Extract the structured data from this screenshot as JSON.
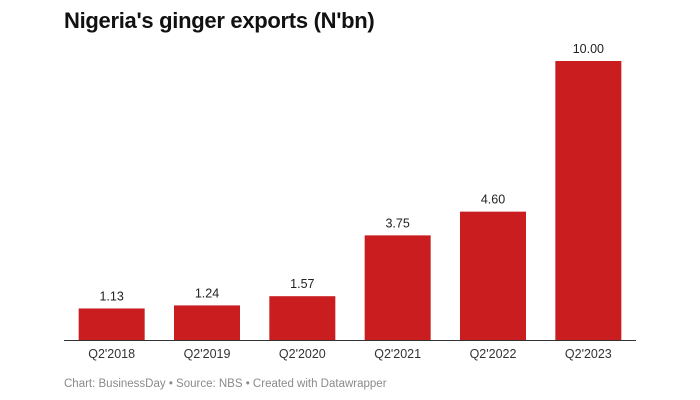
{
  "chart_data": {
    "type": "bar",
    "title": "Nigeria's ginger exports (N'bn)",
    "categories": [
      "Q2'2018",
      "Q2'2019",
      "Q2'2020",
      "Q2'2021",
      "Q2'2022",
      "Q2'2023"
    ],
    "values": [
      1.13,
      1.24,
      1.57,
      3.75,
      4.6,
      10.0
    ],
    "data_labels": [
      "1.13",
      "1.24",
      "1.57",
      "3.75",
      "4.60",
      "10.00"
    ],
    "xlabel": "",
    "ylabel": "",
    "ylim": [
      0,
      10
    ],
    "grid": false,
    "bar_color": "#c91d1f"
  },
  "footer": "Chart: BusinessDay • Source: NBS • Created with Datawrapper"
}
